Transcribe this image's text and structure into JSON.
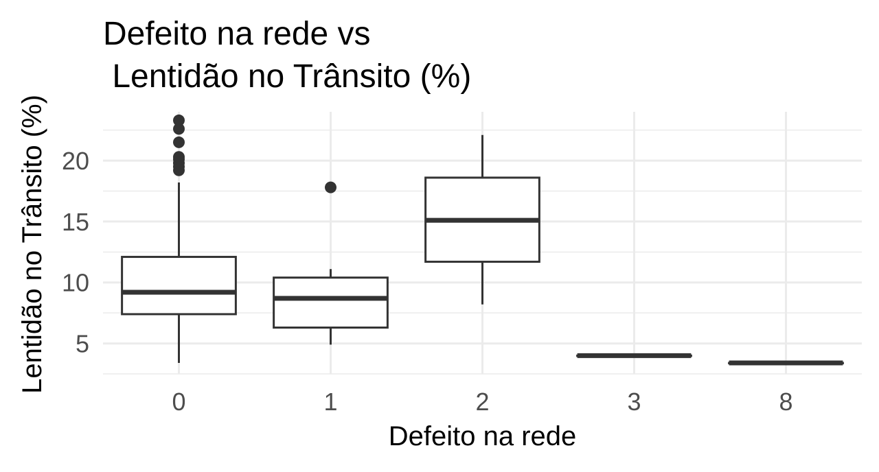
{
  "chart_data": {
    "type": "boxplot",
    "title_lines": [
      "Defeito na rede vs",
      " Lentidão no Trânsito (%)"
    ],
    "xlabel": "Defeito na rede",
    "ylabel": "Lentidão no Trânsito (%)",
    "categories": [
      "0",
      "1",
      "2",
      "3",
      "8"
    ],
    "y_ticks": [
      "5",
      "10",
      "15",
      "20"
    ],
    "ylim": [
      2.5,
      24.0
    ],
    "grid": true,
    "boxes": [
      {
        "category": "0",
        "whisker_low": 3.4,
        "q1": 7.4,
        "median": 9.2,
        "q3": 12.1,
        "whisker_high": 18.2,
        "outliers": [
          19.2,
          19.5,
          19.8,
          20.1,
          20.3,
          21.5,
          22.6,
          23.3
        ]
      },
      {
        "category": "1",
        "whisker_low": 4.9,
        "q1": 6.3,
        "median": 8.7,
        "q3": 10.4,
        "whisker_high": 11.1,
        "outliers": [
          17.8
        ]
      },
      {
        "category": "2",
        "whisker_low": 8.2,
        "q1": 11.7,
        "median": 15.1,
        "q3": 18.6,
        "whisker_high": 22.1,
        "outliers": []
      },
      {
        "category": "3",
        "whisker_low": 4.0,
        "q1": 4.0,
        "median": 4.0,
        "q3": 4.0,
        "whisker_high": 4.0,
        "outliers": []
      },
      {
        "category": "8",
        "whisker_low": 3.4,
        "q1": 3.4,
        "median": 3.4,
        "q3": 3.4,
        "whisker_high": 3.4,
        "outliers": []
      }
    ],
    "colors": {
      "box_line": "#333333",
      "grid": "#ebebeb",
      "tick_text": "#4d4d4d",
      "box_fill": "#ffffff"
    }
  }
}
